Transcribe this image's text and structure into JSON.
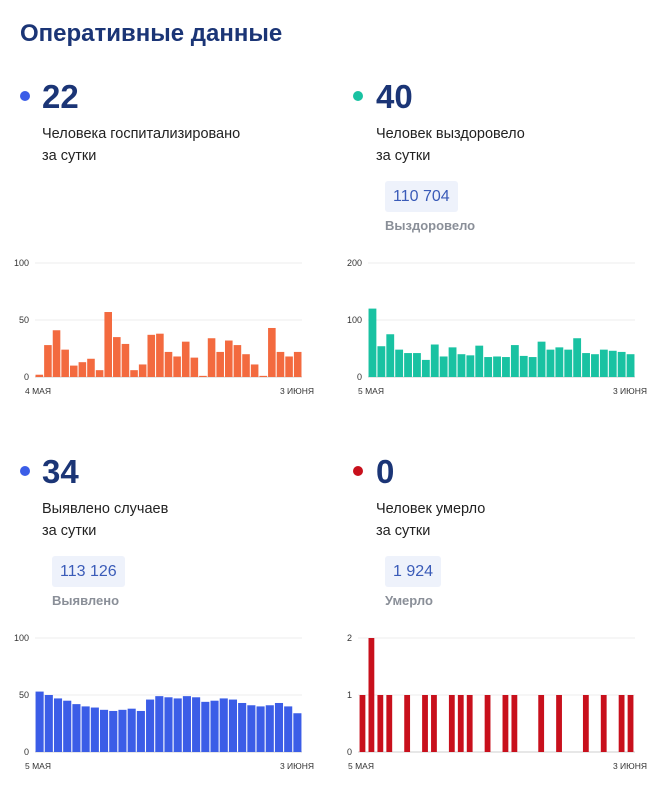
{
  "page": {
    "title": "Оперативные данные"
  },
  "panels": [
    {
      "id": "hospitalized",
      "value": "22",
      "line1": "Человека госпитализировано",
      "line2": "за сутки",
      "total": "",
      "total_label": "",
      "color": "#f36a3f",
      "dot_color": "#3b5de7"
    },
    {
      "id": "recovered",
      "value": "40",
      "line1": "Человек выздоровело",
      "line2": "за сутки",
      "total": "110 704",
      "total_label": "Выздоровело",
      "color": "#19c2a2",
      "dot_color": "#19c2a2"
    },
    {
      "id": "cases",
      "value": "34",
      "line1": "Выявлено случаев",
      "line2": "за сутки",
      "total": "113 126",
      "total_label": "Выявлено",
      "color": "#3b5de7",
      "dot_color": "#3b5de7"
    },
    {
      "id": "deaths",
      "value": "0",
      "line1": "Человек умерло",
      "line2": "за сутки",
      "total": "1 924",
      "total_label": "Умерло",
      "color": "#c8101c",
      "dot_color": "#c8101c"
    }
  ],
  "chart_data": [
    {
      "type": "bar",
      "x_start_label": "4 МАЯ",
      "x_end_label": "3 ИЮНЯ",
      "y_ticks": [
        0,
        50,
        100
      ],
      "ylim": [
        0,
        100
      ],
      "grid": true,
      "values": [
        2,
        28,
        41,
        24,
        10,
        13,
        16,
        6,
        57,
        35,
        29,
        6,
        11,
        37,
        38,
        22,
        18,
        31,
        17,
        1,
        34,
        22,
        32,
        28,
        20,
        11,
        1,
        43,
        22,
        18,
        22
      ]
    },
    {
      "type": "bar",
      "x_start_label": "5 МАЯ",
      "x_end_label": "3 ИЮНЯ",
      "y_ticks": [
        0,
        100,
        200
      ],
      "ylim": [
        0,
        200
      ],
      "grid": true,
      "values": [
        120,
        54,
        75,
        48,
        42,
        42,
        30,
        57,
        36,
        52,
        40,
        38,
        55,
        35,
        36,
        35,
        56,
        37,
        35,
        62,
        48,
        52,
        48,
        68,
        42,
        40,
        48,
        46,
        44,
        40
      ]
    },
    {
      "type": "bar",
      "x_start_label": "5 МАЯ",
      "x_end_label": "3 ИЮНЯ",
      "y_ticks": [
        0,
        50,
        100
      ],
      "ylim": [
        0,
        100
      ],
      "grid": true,
      "values": [
        53,
        50,
        47,
        45,
        42,
        40,
        39,
        37,
        36,
        37,
        38,
        36,
        46,
        49,
        48,
        47,
        49,
        48,
        44,
        45,
        47,
        46,
        43,
        41,
        40,
        41,
        43,
        40,
        34
      ]
    },
    {
      "type": "bar",
      "x_start_label": "5 МАЯ",
      "x_end_label": "3 ИЮНЯ",
      "y_ticks": [
        0,
        1,
        2
      ],
      "ylim": [
        0,
        2
      ],
      "grid": true,
      "values": [
        1,
        2,
        1,
        1,
        0,
        1,
        0,
        1,
        1,
        0,
        1,
        1,
        1,
        0,
        1,
        0,
        1,
        1,
        0,
        0,
        1,
        0,
        1,
        0,
        0,
        1,
        0,
        1,
        0,
        1,
        1
      ]
    }
  ]
}
